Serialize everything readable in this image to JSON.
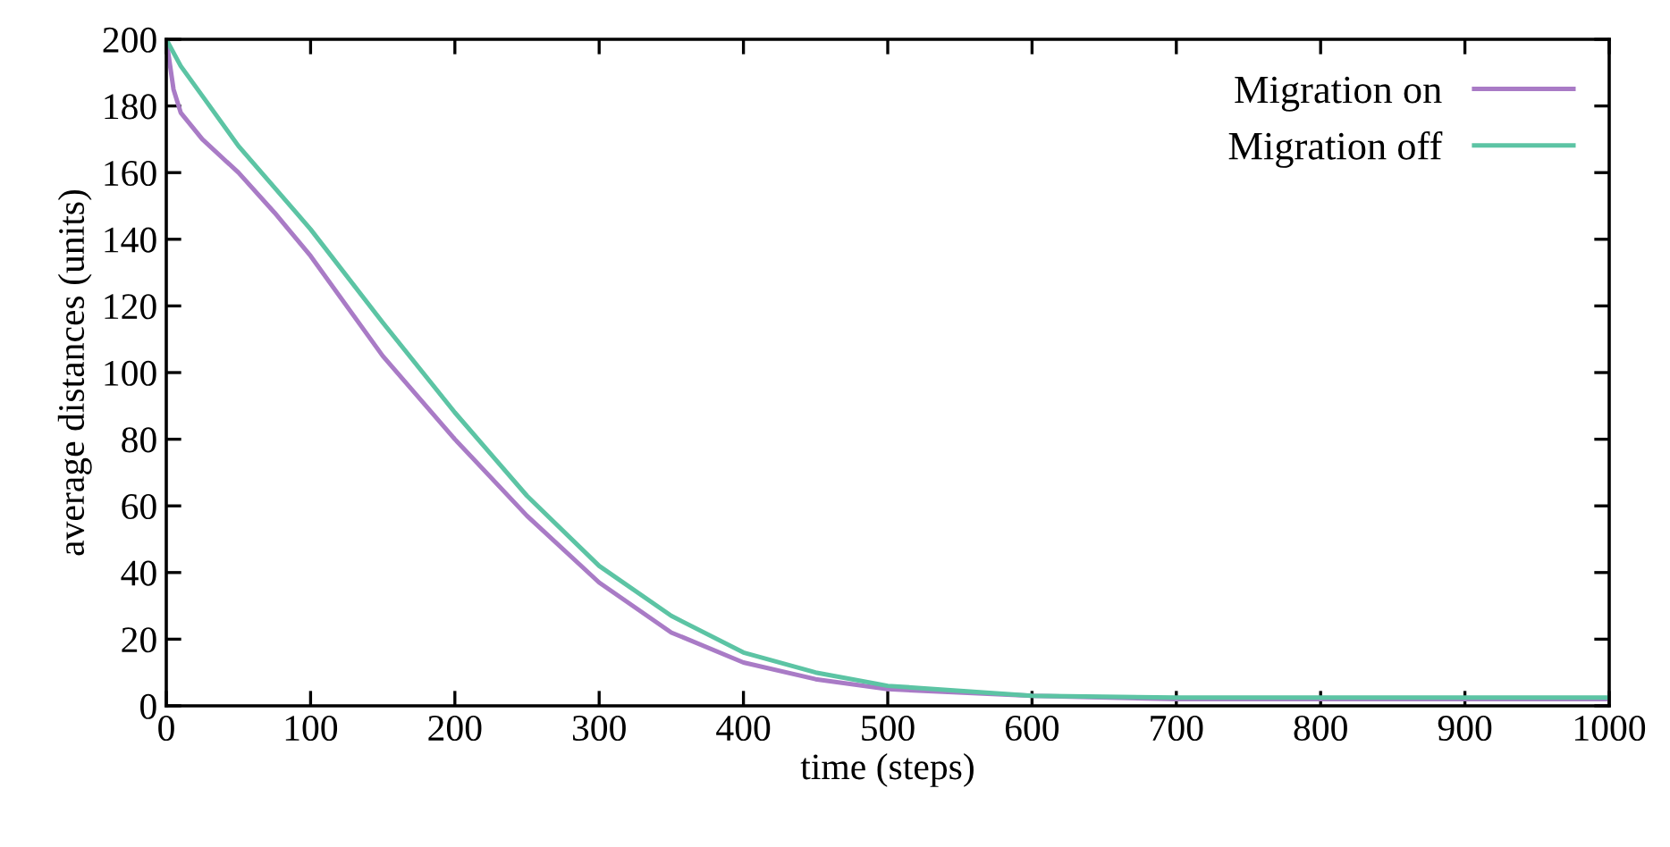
{
  "chart_data": {
    "type": "line",
    "xlabel": "time (steps)",
    "ylabel": "average distances (units)",
    "xlim": [
      0,
      1000
    ],
    "xticks": [
      0,
      100,
      200,
      300,
      400,
      500,
      600,
      700,
      800,
      900,
      1000
    ],
    "ylim": [
      0,
      200
    ],
    "yticks": [
      0,
      20,
      40,
      60,
      80,
      100,
      120,
      140,
      160,
      180,
      200
    ],
    "grid": false,
    "legend": "top right",
    "line_style": "solid",
    "series": [
      {
        "name": "Migration on",
        "color": "#a97bc6",
        "x": [
          0,
          5,
          10,
          25,
          50,
          75,
          100,
          150,
          200,
          250,
          300,
          350,
          400,
          450,
          500,
          600,
          700,
          800,
          900,
          1000
        ],
        "values": [
          200,
          185,
          178,
          170,
          160,
          148,
          135,
          105,
          80,
          57,
          37,
          22,
          13,
          8,
          5,
          3,
          2,
          2,
          2,
          2
        ]
      },
      {
        "name": "Migration off",
        "color": "#5cc4a4",
        "x": [
          0,
          10,
          25,
          50,
          90,
          100,
          150,
          200,
          250,
          300,
          350,
          400,
          450,
          500,
          600,
          700,
          800,
          900,
          1000
        ],
        "values": [
          200,
          192,
          183,
          168,
          148,
          143,
          115,
          88,
          63,
          42,
          27,
          16,
          10,
          6,
          3,
          2.5,
          2.5,
          2.5,
          2.5
        ]
      }
    ]
  }
}
